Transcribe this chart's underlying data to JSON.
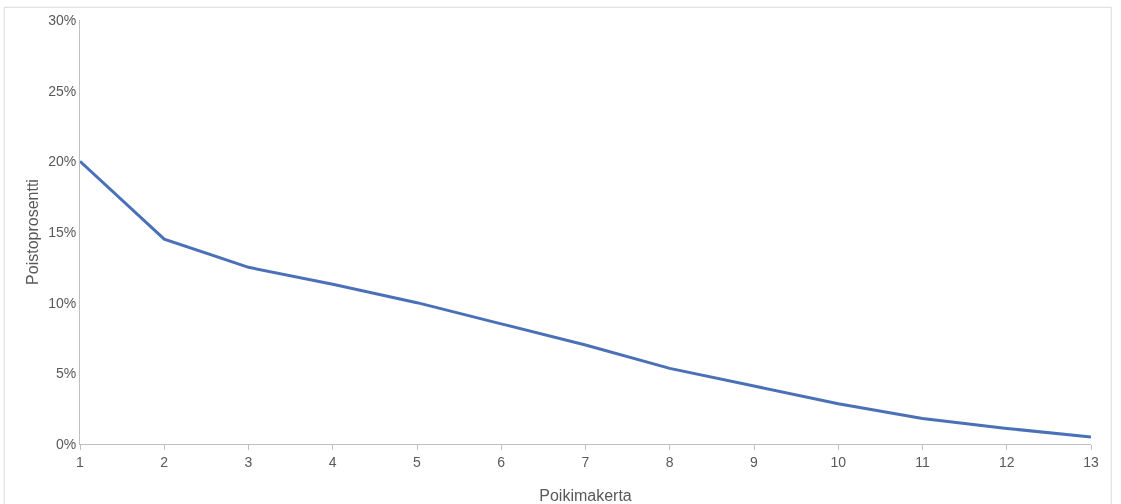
{
  "chart_data": {
    "type": "line",
    "xlabel": "Poikimakerta",
    "ylabel": "Poistoprosentti",
    "x": [
      1,
      2,
      3,
      4,
      5,
      6,
      7,
      8,
      9,
      10,
      11,
      12,
      13
    ],
    "series": [
      {
        "color": "#4a70b8",
        "values": [
          20,
          14.5,
          12.5,
          11.3,
          10,
          8.5,
          7,
          5.35,
          4.1,
          2.85,
          1.8,
          1.1,
          0.5
        ]
      }
    ],
    "xlim": [
      1,
      13
    ],
    "xticks": [
      1,
      2,
      3,
      4,
      5,
      6,
      7,
      8,
      9,
      10,
      11,
      12,
      13
    ],
    "ylim": [
      0,
      30
    ],
    "yticks": [
      {
        "value": 0,
        "label": "0%"
      },
      {
        "value": 5,
        "label": "5%"
      },
      {
        "value": 10,
        "label": "10%"
      },
      {
        "value": 15,
        "label": "15%"
      },
      {
        "value": 20,
        "label": "20%"
      },
      {
        "value": 25,
        "label": "25%"
      },
      {
        "value": 30,
        "label": "30%"
      }
    ],
    "grid": false,
    "marker": "none",
    "line_style": "solid"
  }
}
